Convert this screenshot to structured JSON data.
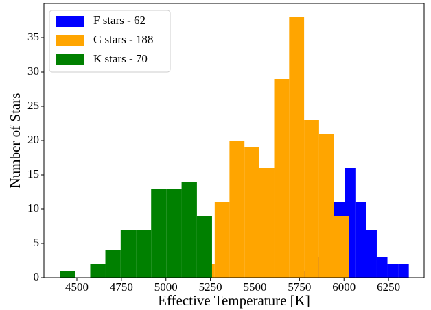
{
  "chart_data": {
    "type": "histogram",
    "xlabel": "Effective Temperature [K]",
    "ylabel": "Number of Stars",
    "xlim": [
      4315,
      6450
    ],
    "ylim": [
      0,
      40
    ],
    "xticks": [
      4500,
      4750,
      5000,
      5250,
      5500,
      5750,
      6000,
      6250
    ],
    "yticks": [
      0,
      5,
      10,
      15,
      20,
      25,
      30,
      35
    ],
    "legend": "upper left",
    "series": [
      {
        "name": "F stars - 62",
        "color": "#0000ff",
        "bins": [
          5764,
          5824,
          5884,
          5944,
          6004,
          6064,
          6124,
          6184,
          6244,
          6304,
          6364
        ],
        "values": [
          1,
          3,
          6,
          11,
          16,
          11,
          7,
          3,
          2,
          2
        ]
      },
      {
        "name": "G stars - 188",
        "color": "#ffa500",
        "bins": [
          5190,
          5274,
          5357,
          5441,
          5525,
          5608,
          5692,
          5776,
          5860,
          5943,
          6027
        ],
        "values": [
          2,
          11,
          20,
          19,
          16,
          29,
          38,
          23,
          21,
          9
        ]
      },
      {
        "name": "K stars - 70",
        "color": "#008000",
        "bins": [
          4404,
          4490,
          4575,
          4660,
          4746,
          4832,
          4917,
          5002,
          5088,
          5174,
          5259
        ],
        "values": [
          1,
          0,
          2,
          4,
          7,
          7,
          13,
          13,
          14,
          9
        ]
      }
    ]
  }
}
